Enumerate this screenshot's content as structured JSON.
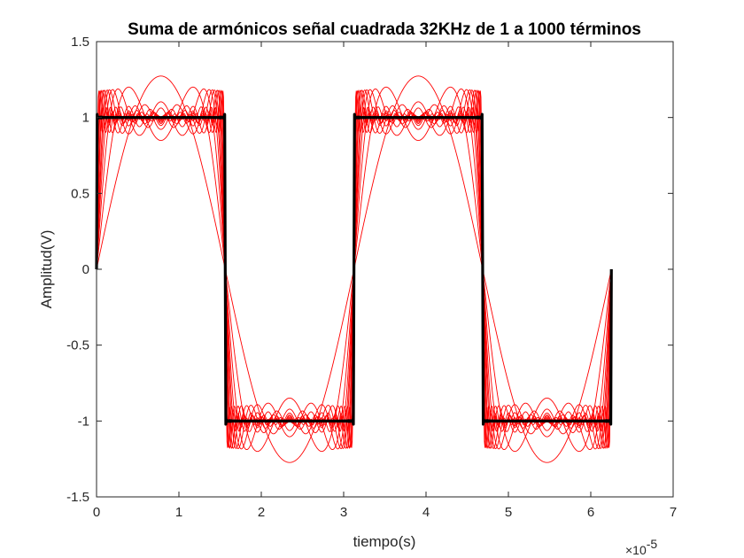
{
  "chart_data": {
    "type": "line",
    "title": "Suma de armónicos señal cuadrada 32KHz de 1 a 1000 términos",
    "xlabel": "tiempo(s)",
    "ylabel": "Amplitud(V)",
    "x_exponent_label": "×10",
    "x_exponent_power": "-5",
    "xlim": [
      0,
      7
    ],
    "ylim": [
      -1.5,
      1.5
    ],
    "x_scale_factor": 1e-05,
    "xticks": [
      0,
      1,
      2,
      3,
      4,
      5,
      6,
      7
    ],
    "xtick_labels": [
      "0",
      "1",
      "2",
      "3",
      "4",
      "5",
      "6",
      "7"
    ],
    "yticks": [
      -1.5,
      -1,
      -0.5,
      0,
      0.5,
      1,
      1.5
    ],
    "ytick_labels": [
      "-1.5",
      "-1",
      "-0.5",
      "0",
      "0.5",
      "1",
      "1.5"
    ],
    "grid": false,
    "signal": {
      "frequency_hz": 32000,
      "t_end": 6.25e-05,
      "amplitude": 1
    },
    "series": [
      {
        "harmonics": 1,
        "color": "#ff0000"
      },
      {
        "harmonics": 2,
        "color": "#ff0000"
      },
      {
        "harmonics": 3,
        "color": "#ff0000"
      },
      {
        "harmonics": 4,
        "color": "#ff0000"
      },
      {
        "harmonics": 5,
        "color": "#ff0000"
      },
      {
        "harmonics": 6,
        "color": "#ff0000"
      },
      {
        "harmonics": 8,
        "color": "#ff0000"
      },
      {
        "harmonics": 10,
        "color": "#ff0000"
      },
      {
        "harmonics": 14,
        "color": "#ff0000"
      },
      {
        "harmonics": 20,
        "color": "#ff0000"
      },
      {
        "harmonics": 30,
        "color": "#ff0000"
      },
      {
        "harmonics": 1000,
        "color": "#000000"
      }
    ]
  }
}
